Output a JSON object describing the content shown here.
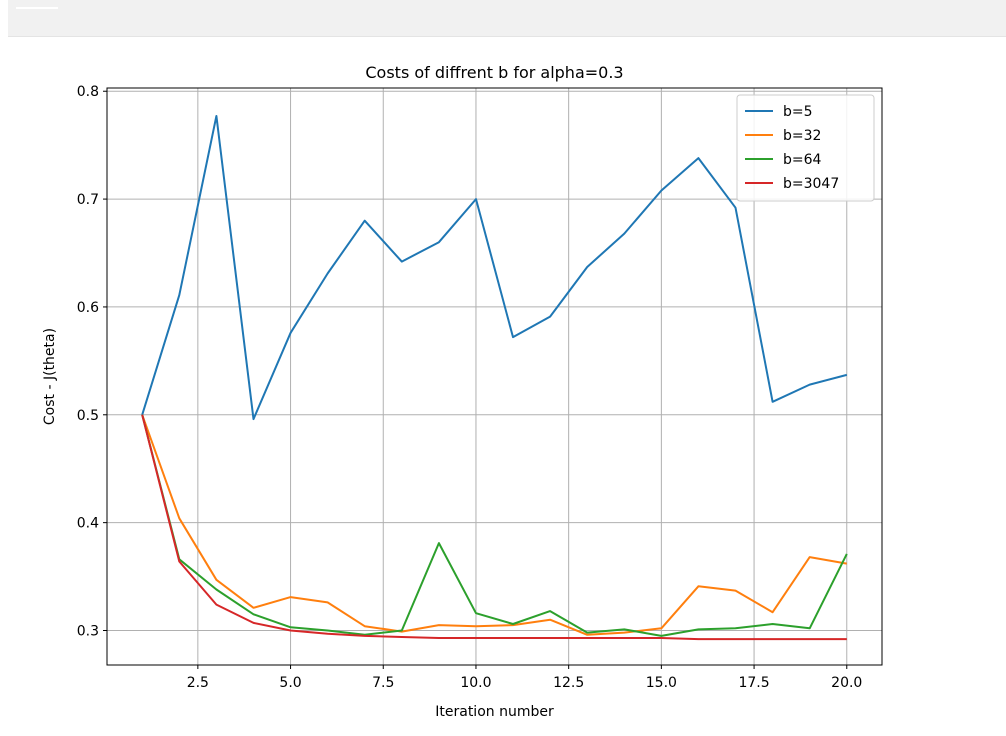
{
  "chart_data": {
    "type": "line",
    "title": "Costs of diffrent b for alpha=0.3",
    "xlabel": "Iteration number",
    "ylabel": "Cost - J(theta)",
    "xlim": [
      0.05,
      20.95
    ],
    "ylim": [
      0.268,
      0.803
    ],
    "xticks": [
      2.5,
      5.0,
      7.5,
      10.0,
      12.5,
      15.0,
      17.5,
      20.0
    ],
    "xtick_labels": [
      "2.5",
      "5.0",
      "7.5",
      "10.0",
      "12.5",
      "15.0",
      "17.5",
      "20.0"
    ],
    "yticks": [
      0.3,
      0.4,
      0.5,
      0.6,
      0.7,
      0.8
    ],
    "ytick_labels": [
      "0.3",
      "0.4",
      "0.5",
      "0.6",
      "0.7",
      "0.8"
    ],
    "grid": true,
    "legend_position": "top-right",
    "x": [
      1,
      2,
      3,
      4,
      5,
      6,
      7,
      8,
      9,
      10,
      11,
      12,
      13,
      14,
      15,
      16,
      17,
      18,
      19,
      20
    ],
    "series": [
      {
        "name": "b=5",
        "color": "#1f77b4",
        "values": [
          0.5,
          0.611,
          0.777,
          0.496,
          0.576,
          0.631,
          0.68,
          0.642,
          0.66,
          0.7,
          0.572,
          0.591,
          0.637,
          0.668,
          0.708,
          0.738,
          0.692,
          0.512,
          0.528,
          0.537
        ]
      },
      {
        "name": "b=32",
        "color": "#ff7f0e",
        "values": [
          0.5,
          0.404,
          0.347,
          0.321,
          0.331,
          0.326,
          0.304,
          0.299,
          0.305,
          0.304,
          0.305,
          0.31,
          0.296,
          0.298,
          0.302,
          0.341,
          0.337,
          0.317,
          0.368,
          0.362
        ]
      },
      {
        "name": "b=64",
        "color": "#2ca02c",
        "values": [
          0.5,
          0.366,
          0.338,
          0.315,
          0.303,
          0.3,
          0.296,
          0.3,
          0.381,
          0.316,
          0.306,
          0.318,
          0.298,
          0.301,
          0.295,
          0.301,
          0.302,
          0.306,
          0.302,
          0.371
        ]
      },
      {
        "name": "b=3047",
        "color": "#d62728",
        "values": [
          0.5,
          0.364,
          0.324,
          0.307,
          0.3,
          0.297,
          0.295,
          0.294,
          0.293,
          0.293,
          0.293,
          0.293,
          0.293,
          0.293,
          0.293,
          0.292,
          0.292,
          0.292,
          0.292,
          0.292
        ]
      }
    ]
  }
}
